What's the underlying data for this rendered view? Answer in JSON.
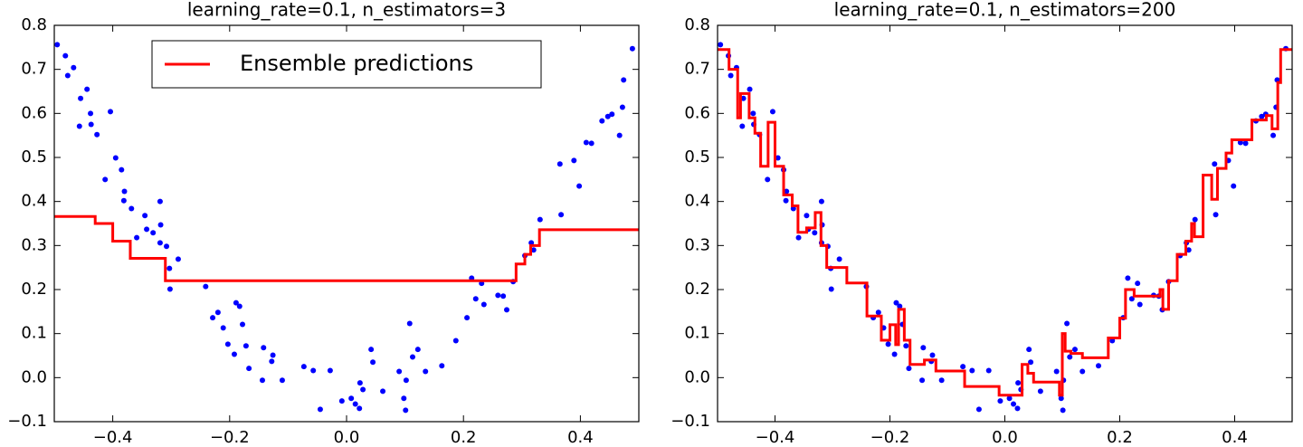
{
  "chart_data": [
    {
      "type": "scatter",
      "title": "learning_rate=0.1, n_estimators=3",
      "xlim": [
        -0.5,
        0.5
      ],
      "ylim": [
        -0.1,
        0.8
      ],
      "xticks": [
        {
          "value": -0.4,
          "label": "−0.4"
        },
        {
          "value": -0.2,
          "label": "−0.2"
        },
        {
          "value": 0.0,
          "label": "0.0"
        },
        0.2,
        0.4
      ],
      "yticks": [
        {
          "value": -0.1,
          "label": "−0.1"
        },
        {
          "value": 0.0,
          "label": "0.0"
        },
        0.1,
        0.2,
        0.3,
        0.4,
        0.5,
        0.6,
        0.7,
        0.8
      ],
      "legend": "upper center",
      "series": [
        {
          "type": "scatter",
          "color": "#0000ff",
          "x": [
            -0.495,
            -0.481,
            -0.477,
            -0.467,
            -0.455,
            -0.457,
            -0.444,
            -0.438,
            -0.437,
            -0.427,
            -0.404,
            -0.413,
            -0.395,
            -0.385,
            -0.381,
            -0.38,
            -0.368,
            -0.359,
            -0.345,
            -0.342,
            -0.331,
            -0.319,
            -0.318,
            -0.319,
            -0.308,
            -0.303,
            -0.302,
            -0.288,
            -0.241,
            -0.229,
            -0.22,
            -0.211,
            -0.203,
            -0.192,
            -0.189,
            -0.183,
            -0.178,
            -0.172,
            -0.167,
            -0.142,
            -0.128,
            -0.126,
            -0.144,
            -0.11,
            -0.073,
            -0.057,
            -0.045,
            -0.028,
            -0.008,
            0.008,
            0.015,
            0.022,
            0.023,
            0.028,
            0.042,
            0.045,
            0.062,
            0.09,
            0.098,
            0.101,
            0.102,
            0.108,
            0.113,
            0.122,
            0.135,
            0.163,
            0.187,
            0.206,
            0.214,
            0.221,
            0.231,
            0.235,
            0.259,
            0.268,
            0.274,
            0.285,
            0.305,
            0.316,
            0.32,
            0.331,
            0.365,
            0.367,
            0.389,
            0.398,
            0.41,
            0.419,
            0.437,
            0.447,
            0.454,
            0.467,
            0.472,
            0.474,
            0.489
          ],
          "values": [
            0.756,
            0.731,
            0.686,
            0.704,
            0.634,
            0.571,
            0.655,
            0.6,
            0.575,
            0.552,
            0.604,
            0.45,
            0.499,
            0.472,
            0.402,
            0.423,
            0.384,
            0.318,
            0.368,
            0.337,
            0.329,
            0.4,
            0.347,
            0.306,
            0.298,
            0.248,
            0.201,
            0.269,
            0.207,
            0.136,
            0.148,
            0.113,
            0.076,
            0.053,
            0.17,
            0.162,
            0.121,
            0.072,
            0.021,
            0.068,
            0.037,
            0.051,
            -0.006,
            -0.006,
            0.025,
            0.016,
            -0.072,
            0.016,
            -0.053,
            -0.047,
            -0.06,
            -0.07,
            -0.012,
            -0.027,
            0.064,
            0.035,
            -0.031,
            0.014,
            -0.047,
            -0.074,
            -0.006,
            0.123,
            0.047,
            0.064,
            0.014,
            0.027,
            0.084,
            0.136,
            0.226,
            0.179,
            0.214,
            0.166,
            0.187,
            0.185,
            0.154,
            0.218,
            0.277,
            0.306,
            0.29,
            0.359,
            0.485,
            0.37,
            0.493,
            0.435,
            0.534,
            0.532,
            0.583,
            0.593,
            0.598,
            0.55,
            0.614,
            0.676,
            0.747
          ]
        },
        {
          "type": "line",
          "name": "Ensemble predictions",
          "color": "#ff0000",
          "x": [
            -0.5,
            -0.43,
            -0.43,
            -0.4,
            -0.4,
            -0.37,
            -0.37,
            -0.31,
            -0.31,
            0.29,
            0.29,
            0.305,
            0.305,
            0.315,
            0.315,
            0.33,
            0.33,
            0.5
          ],
          "values": [
            0.366,
            0.366,
            0.35,
            0.35,
            0.31,
            0.31,
            0.271,
            0.271,
            0.22,
            0.22,
            0.258,
            0.258,
            0.28,
            0.28,
            0.3,
            0.3,
            0.336,
            0.336
          ]
        }
      ]
    },
    {
      "type": "scatter",
      "title": "learning_rate=0.1, n_estimators=200",
      "xlim": [
        -0.5,
        0.5
      ],
      "ylim": [
        -0.1,
        0.8
      ],
      "xticks": [
        {
          "value": -0.4,
          "label": "−0.4"
        },
        {
          "value": -0.2,
          "label": "−0.2"
        },
        {
          "value": 0.0,
          "label": "0.0"
        },
        0.2,
        0.4
      ],
      "yticks": [
        {
          "value": -0.1,
          "label": "−0.1"
        },
        {
          "value": 0.0,
          "label": "0.0"
        },
        0.1,
        0.2,
        0.3,
        0.4,
        0.5,
        0.6,
        0.7,
        0.8
      ],
      "series": [
        {
          "type": "scatter",
          "color": "#0000ff",
          "x": [
            -0.495,
            -0.481,
            -0.477,
            -0.467,
            -0.455,
            -0.457,
            -0.444,
            -0.438,
            -0.437,
            -0.427,
            -0.404,
            -0.413,
            -0.395,
            -0.385,
            -0.381,
            -0.38,
            -0.368,
            -0.359,
            -0.345,
            -0.342,
            -0.331,
            -0.319,
            -0.318,
            -0.319,
            -0.308,
            -0.303,
            -0.302,
            -0.288,
            -0.241,
            -0.229,
            -0.22,
            -0.211,
            -0.203,
            -0.192,
            -0.189,
            -0.183,
            -0.178,
            -0.172,
            -0.167,
            -0.142,
            -0.128,
            -0.126,
            -0.144,
            -0.11,
            -0.073,
            -0.057,
            -0.045,
            -0.028,
            -0.008,
            0.008,
            0.015,
            0.022,
            0.023,
            0.028,
            0.042,
            0.045,
            0.062,
            0.09,
            0.098,
            0.101,
            0.102,
            0.108,
            0.113,
            0.122,
            0.135,
            0.163,
            0.187,
            0.206,
            0.214,
            0.221,
            0.231,
            0.235,
            0.259,
            0.268,
            0.274,
            0.285,
            0.305,
            0.316,
            0.32,
            0.331,
            0.365,
            0.367,
            0.389,
            0.398,
            0.41,
            0.419,
            0.437,
            0.447,
            0.454,
            0.467,
            0.472,
            0.474,
            0.489
          ],
          "values": [
            0.756,
            0.731,
            0.686,
            0.704,
            0.634,
            0.571,
            0.655,
            0.6,
            0.575,
            0.552,
            0.604,
            0.45,
            0.499,
            0.472,
            0.402,
            0.423,
            0.384,
            0.318,
            0.368,
            0.337,
            0.329,
            0.4,
            0.347,
            0.306,
            0.298,
            0.248,
            0.201,
            0.269,
            0.207,
            0.136,
            0.148,
            0.113,
            0.076,
            0.053,
            0.17,
            0.162,
            0.121,
            0.072,
            0.021,
            0.068,
            0.037,
            0.051,
            -0.006,
            -0.006,
            0.025,
            0.016,
            -0.072,
            0.016,
            -0.053,
            -0.047,
            -0.06,
            -0.07,
            -0.012,
            -0.027,
            0.064,
            0.035,
            -0.031,
            0.014,
            -0.047,
            -0.074,
            -0.006,
            0.123,
            0.047,
            0.064,
            0.014,
            0.027,
            0.084,
            0.136,
            0.226,
            0.179,
            0.214,
            0.166,
            0.187,
            0.185,
            0.154,
            0.218,
            0.277,
            0.306,
            0.29,
            0.359,
            0.485,
            0.37,
            0.493,
            0.435,
            0.534,
            0.532,
            0.583,
            0.593,
            0.598,
            0.55,
            0.614,
            0.676,
            0.747
          ]
        },
        {
          "type": "line",
          "color": "#ff0000",
          "x": [
            -0.5,
            -0.48,
            -0.48,
            -0.465,
            -0.465,
            -0.46,
            -0.46,
            -0.445,
            -0.445,
            -0.435,
            -0.435,
            -0.425,
            -0.425,
            -0.412,
            -0.412,
            -0.4,
            -0.4,
            -0.385,
            -0.385,
            -0.37,
            -0.37,
            -0.36,
            -0.36,
            -0.345,
            -0.345,
            -0.33,
            -0.33,
            -0.32,
            -0.32,
            -0.31,
            -0.31,
            -0.275,
            -0.275,
            -0.24,
            -0.24,
            -0.215,
            -0.215,
            -0.2,
            -0.2,
            -0.19,
            -0.19,
            -0.185,
            -0.185,
            -0.175,
            -0.175,
            -0.165,
            -0.165,
            -0.14,
            -0.14,
            -0.12,
            -0.12,
            -0.07,
            -0.07,
            -0.01,
            -0.01,
            0.03,
            0.03,
            0.04,
            0.04,
            0.05,
            0.05,
            0.095,
            0.095,
            0.1,
            0.1,
            0.105,
            0.105,
            0.115,
            0.115,
            0.135,
            0.135,
            0.18,
            0.18,
            0.2,
            0.2,
            0.21,
            0.21,
            0.225,
            0.225,
            0.27,
            0.27,
            0.275,
            0.275,
            0.285,
            0.285,
            0.3,
            0.3,
            0.315,
            0.315,
            0.325,
            0.325,
            0.33,
            0.33,
            0.345,
            0.345,
            0.36,
            0.36,
            0.37,
            0.37,
            0.385,
            0.385,
            0.395,
            0.395,
            0.43,
            0.43,
            0.455,
            0.455,
            0.465,
            0.465,
            0.475,
            0.475,
            0.48,
            0.48,
            0.5
          ],
          "values": [
            0.745,
            0.745,
            0.7,
            0.7,
            0.59,
            0.59,
            0.645,
            0.645,
            0.59,
            0.59,
            0.555,
            0.555,
            0.48,
            0.48,
            0.58,
            0.58,
            0.48,
            0.48,
            0.415,
            0.415,
            0.39,
            0.39,
            0.33,
            0.33,
            0.34,
            0.34,
            0.375,
            0.375,
            0.3,
            0.3,
            0.25,
            0.25,
            0.215,
            0.215,
            0.14,
            0.14,
            0.085,
            0.085,
            0.12,
            0.12,
            0.075,
            0.075,
            0.155,
            0.155,
            0.085,
            0.085,
            0.03,
            0.03,
            0.04,
            0.04,
            0.015,
            0.015,
            -0.02,
            -0.02,
            -0.04,
            -0.04,
            0.03,
            0.03,
            0.01,
            0.01,
            -0.01,
            -0.01,
            -0.04,
            -0.04,
            0.1,
            0.1,
            0.06,
            0.06,
            0.055,
            0.055,
            0.045,
            0.045,
            0.09,
            0.09,
            0.135,
            0.135,
            0.2,
            0.2,
            0.185,
            0.185,
            0.2,
            0.2,
            0.155,
            0.155,
            0.22,
            0.22,
            0.28,
            0.28,
            0.31,
            0.31,
            0.35,
            0.35,
            0.32,
            0.32,
            0.46,
            0.46,
            0.405,
            0.405,
            0.475,
            0.475,
            0.51,
            0.51,
            0.54,
            0.54,
            0.585,
            0.585,
            0.595,
            0.595,
            0.565,
            0.565,
            0.67,
            0.67,
            0.745,
            0.745
          ]
        }
      ]
    }
  ]
}
